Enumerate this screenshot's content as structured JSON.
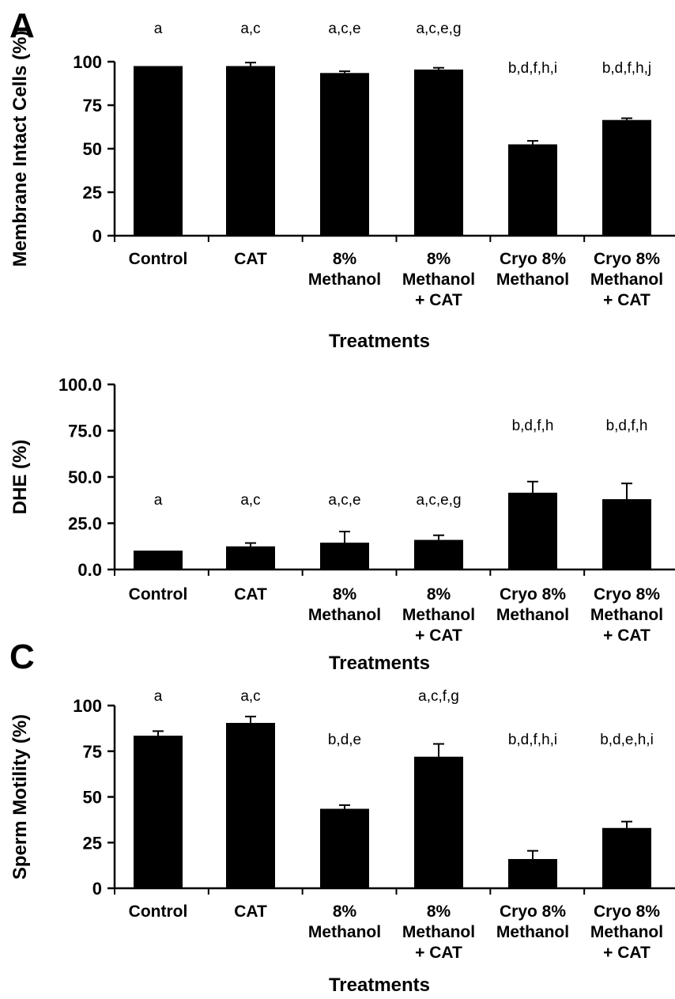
{
  "figure": {
    "panels": [
      {
        "letter": "A"
      },
      {
        "letter": ""
      },
      {
        "letter": "C"
      }
    ]
  },
  "chart_data": [
    {
      "type": "bar",
      "panel_label": "A",
      "categories": [
        [
          "Control"
        ],
        [
          "CAT"
        ],
        [
          "8%",
          "Methanol"
        ],
        [
          "8%",
          "Methanol",
          "+ CAT"
        ],
        [
          "Cryo 8%",
          "Methanol"
        ],
        [
          "Cryo 8%",
          "Methanol",
          "+ CAT"
        ]
      ],
      "values": [
        97.5,
        97.5,
        93.5,
        95.5,
        52.5,
        66.5
      ],
      "errors": [
        0,
        2,
        1,
        1,
        2,
        1
      ],
      "significance_labels": [
        "a",
        "a,c",
        "a,c,e",
        "a,c,e,g",
        "b,d,f,h,i",
        "b,d,f,h,j"
      ],
      "xlabel": "Treatments",
      "ylabel": "Membrane Intact Cells (%)",
      "ylim": [
        0,
        100
      ],
      "yticks": [
        "0",
        "25",
        "50",
        "75",
        "100"
      ],
      "grid": false,
      "bar_color": "#000000"
    },
    {
      "type": "bar",
      "panel_label": "",
      "categories": [
        [
          "Control"
        ],
        [
          "CAT"
        ],
        [
          "8%",
          "Methanol"
        ],
        [
          "8%",
          "Methanol",
          "+ CAT"
        ],
        [
          "Cryo 8%",
          "Methanol"
        ],
        [
          "Cryo 8%",
          "Methanol",
          "+ CAT"
        ]
      ],
      "values": [
        10.2,
        12.5,
        14.5,
        16.0,
        41.5,
        38.0
      ],
      "errors": [
        0,
        1.8,
        6.0,
        2.5,
        6.0,
        8.5
      ],
      "significance_labels": [
        "a",
        "a,c",
        "a,c,e",
        "a,c,e,g",
        "b,d,f,h",
        "b,d,f,h"
      ],
      "xlabel": "Treatments",
      "ylabel": "DHE (%)",
      "ylim": [
        0,
        100
      ],
      "yticks": [
        "0.0",
        "25.0",
        "50.0",
        "75.0",
        "100.0"
      ],
      "grid": false,
      "bar_color": "#000000"
    },
    {
      "type": "bar",
      "panel_label": "C",
      "categories": [
        [
          "Control"
        ],
        [
          "CAT"
        ],
        [
          "8%",
          "Methanol"
        ],
        [
          "8%",
          "Methanol",
          "+ CAT"
        ],
        [
          "Cryo 8%",
          "Methanol"
        ],
        [
          "Cryo 8%",
          "Methanol",
          "+ CAT"
        ]
      ],
      "values": [
        83.5,
        90.5,
        43.5,
        72.0,
        16.0,
        33.0
      ],
      "errors": [
        2.5,
        3.5,
        2.0,
        7.0,
        4.5,
        3.5
      ],
      "significance_labels": [
        "a",
        "a,c",
        "b,d,e",
        "a,c,f,g",
        "b,d,f,h,i",
        "b,d,e,h,i"
      ],
      "xlabel": "Treatments",
      "ylabel": "Sperm Motility (%)",
      "ylim": [
        0,
        100
      ],
      "yticks": [
        "0",
        "25",
        "50",
        "75",
        "100"
      ],
      "grid": false,
      "bar_color": "#000000"
    }
  ]
}
